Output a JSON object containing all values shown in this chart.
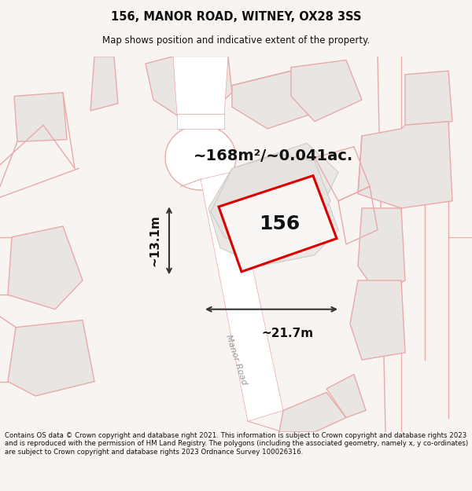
{
  "title": "156, MANOR ROAD, WITNEY, OX28 3SS",
  "subtitle": "Map shows position and indicative extent of the property.",
  "footer": "Contains OS data © Crown copyright and database right 2021. This information is subject to Crown copyright and database rights 2023 and is reproduced with the permission of HM Land Registry. The polygons (including the associated geometry, namely x, y co-ordinates) are subject to Crown copyright and database rights 2023 Ordnance Survey 100026316.",
  "area_label": "~168m²/~0.041ac.",
  "width_label": "~21.7m",
  "height_label": "~13.1m",
  "property_number": "156",
  "bg_color": "#f7f4f1",
  "map_bg": "#f7f4f1",
  "road_color": "#ffffff",
  "parcel_fill": "#e8e5e2",
  "property_outline_color": "#dd0000",
  "property_fill": "#f0eeec",
  "line_color": "#e8aaaa",
  "road_label": "Manor Road",
  "arrow_color": "#333333",
  "text_color": "#111111",
  "gray_parcel_fill": "#e2dedd",
  "gray_parcel_edge": "#e8aaaa"
}
